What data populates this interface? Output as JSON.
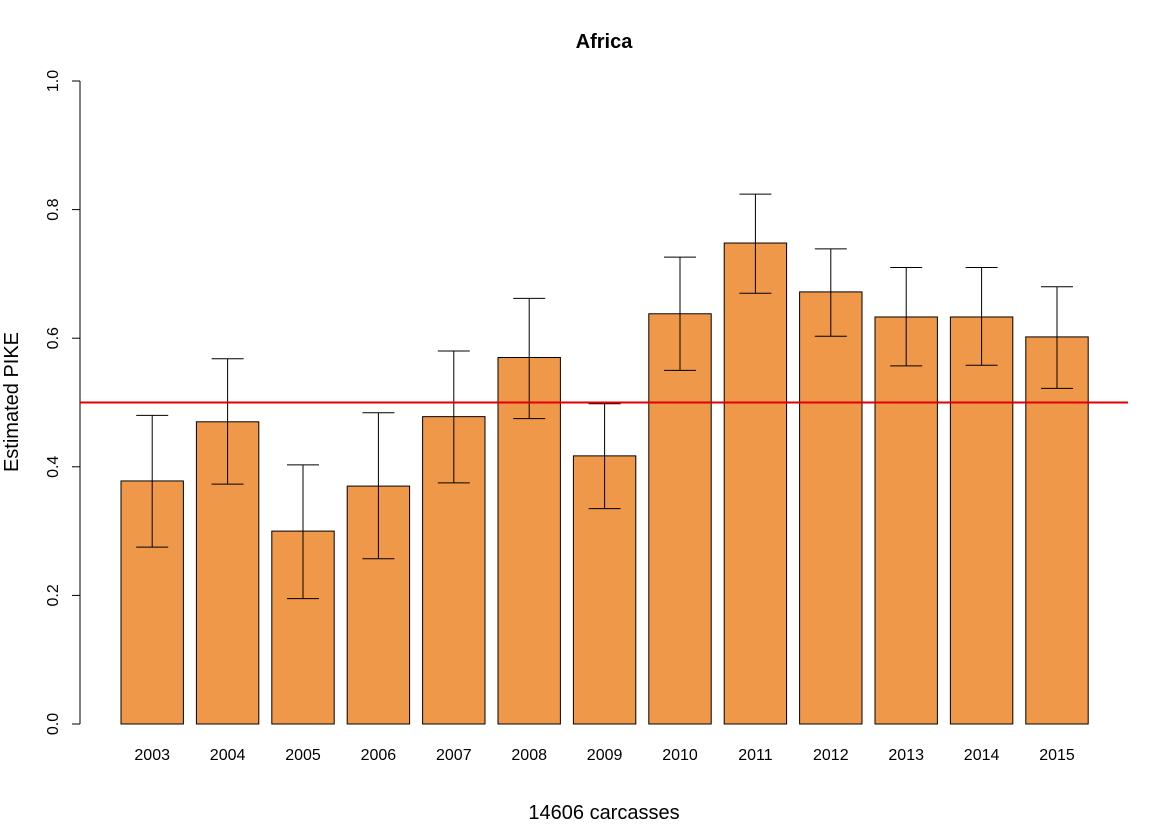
{
  "chart_data": {
    "type": "bar",
    "title": "Africa",
    "xlabel": "14606 carcasses",
    "ylabel": "Estimated PIKE",
    "ylim": [
      0,
      1
    ],
    "yticks": [
      "0.0",
      "0.2",
      "0.4",
      "0.6",
      "0.8",
      "1.0"
    ],
    "categories": [
      "2003",
      "2004",
      "2005",
      "2006",
      "2007",
      "2008",
      "2009",
      "2010",
      "2011",
      "2012",
      "2013",
      "2014",
      "2015"
    ],
    "values": [
      0.378,
      0.47,
      0.3,
      0.37,
      0.478,
      0.57,
      0.417,
      0.638,
      0.748,
      0.672,
      0.633,
      0.633,
      0.602
    ],
    "error_lower": [
      0.275,
      0.373,
      0.195,
      0.257,
      0.375,
      0.475,
      0.335,
      0.55,
      0.67,
      0.603,
      0.557,
      0.558,
      0.522
    ],
    "error_upper": [
      0.48,
      0.568,
      0.403,
      0.484,
      0.58,
      0.662,
      0.498,
      0.726,
      0.824,
      0.739,
      0.71,
      0.71,
      0.68
    ],
    "reference_line": 0.5,
    "colors": {
      "bar_fill": "#F0984A",
      "bar_stroke": "#000000",
      "reference_line": "#E00000",
      "error_bar": "#000000"
    },
    "grid": false,
    "legend": "none"
  }
}
